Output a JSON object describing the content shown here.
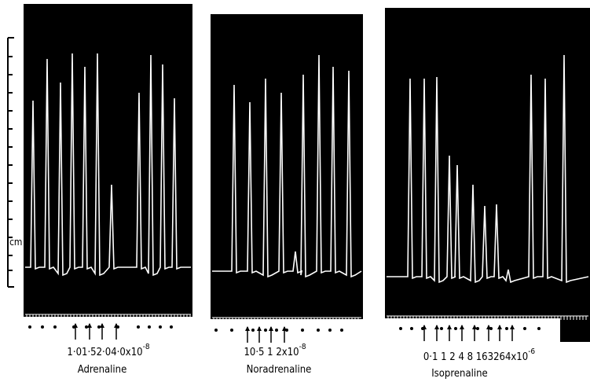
{
  "scale_label": "cm",
  "panels": [
    {
      "dose": "1·01·52·04·0x10",
      "exponent": "-8",
      "drug": "Adrenaline"
    },
    {
      "dose": "10·5 1  2x10",
      "exponent": "-8",
      "drug": "Noradrenaline"
    },
    {
      "dose": "0·1  1  2  4  8  163264x10",
      "exponent": "-6",
      "drug": "Isoprenaline"
    }
  ]
}
